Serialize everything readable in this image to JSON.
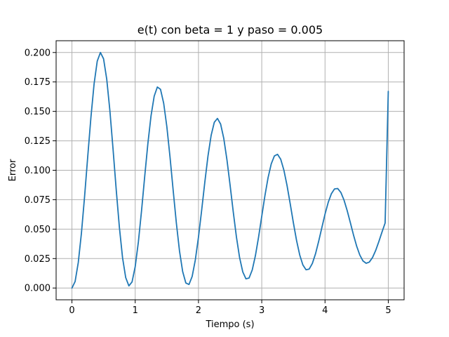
{
  "chart_data": {
    "type": "line",
    "title": "e(t) con beta = 1 y paso = 0.005",
    "xlabel": "Tiempo (s)",
    "ylabel": "Error",
    "xlim": [
      -0.25,
      5.25
    ],
    "ylim": [
      -0.01,
      0.21
    ],
    "x_ticks": [
      0,
      1,
      2,
      3,
      4,
      5
    ],
    "x_tick_labels": [
      "0",
      "1",
      "2",
      "3",
      "4",
      "5"
    ],
    "y_ticks": [
      0.0,
      0.025,
      0.05,
      0.075,
      0.1,
      0.125,
      0.15,
      0.175,
      0.2
    ],
    "y_tick_labels": [
      "0.000",
      "0.025",
      "0.050",
      "0.075",
      "0.100",
      "0.125",
      "0.150",
      "0.175",
      "0.200"
    ],
    "grid": true,
    "line_color": "#1f77b4",
    "series": [
      {
        "x": [
          0.0,
          0.05,
          0.1,
          0.15,
          0.2,
          0.25,
          0.3,
          0.35,
          0.4,
          0.45,
          0.5,
          0.55,
          0.6,
          0.65,
          0.7,
          0.75,
          0.8,
          0.85,
          0.9,
          0.95,
          1.0,
          1.05,
          1.1,
          1.15,
          1.2,
          1.25,
          1.3,
          1.35,
          1.4,
          1.45,
          1.5,
          1.55,
          1.6,
          1.65,
          1.7,
          1.75,
          1.8,
          1.85,
          1.9,
          1.95,
          2.0,
          2.05,
          2.1,
          2.15,
          2.2,
          2.25,
          2.3,
          2.35,
          2.4,
          2.45,
          2.5,
          2.55,
          2.6,
          2.65,
          2.7,
          2.75,
          2.8,
          2.85,
          2.9,
          2.95,
          3.0,
          3.05,
          3.1,
          3.15,
          3.2,
          3.25,
          3.3,
          3.35,
          3.4,
          3.45,
          3.5,
          3.55,
          3.6,
          3.65,
          3.7,
          3.75,
          3.8,
          3.85,
          3.9,
          3.95,
          4.0,
          4.05,
          4.1,
          4.15,
          4.2,
          4.25,
          4.3,
          4.35,
          4.4,
          4.45,
          4.5,
          4.55,
          4.6,
          4.65,
          4.7,
          4.75,
          4.8,
          4.85,
          4.9,
          4.95,
          5.0
        ],
        "y": [
          0.0,
          0.0055,
          0.0216,
          0.0466,
          0.0778,
          0.1118,
          0.1449,
          0.1733,
          0.1927,
          0.2,
          0.1946,
          0.1773,
          0.1505,
          0.1178,
          0.0834,
          0.0515,
          0.0257,
          0.0088,
          0.0018,
          0.0052,
          0.0182,
          0.0391,
          0.0656,
          0.0946,
          0.1225,
          0.1462,
          0.1629,
          0.1707,
          0.1687,
          0.1569,
          0.137,
          0.1113,
          0.0829,
          0.0553,
          0.0315,
          0.014,
          0.0043,
          0.003,
          0.0098,
          0.0238,
          0.0432,
          0.0659,
          0.0898,
          0.112,
          0.1296,
          0.1407,
          0.144,
          0.1392,
          0.127,
          0.1089,
          0.0872,
          0.0645,
          0.0433,
          0.0258,
          0.0137,
          0.0078,
          0.0085,
          0.0154,
          0.0275,
          0.0433,
          0.0609,
          0.0783,
          0.0937,
          0.1054,
          0.1122,
          0.1135,
          0.1093,
          0.1001,
          0.087,
          0.0715,
          0.0554,
          0.0404,
          0.0281,
          0.0196,
          0.0155,
          0.0161,
          0.0209,
          0.0291,
          0.0397,
          0.0513,
          0.0627,
          0.0726,
          0.08,
          0.0841,
          0.0845,
          0.0812,
          0.0747,
          0.0658,
          0.0556,
          0.0451,
          0.0356,
          0.028,
          0.023,
          0.021,
          0.022,
          0.0258,
          0.0318,
          0.0393,
          0.0474,
          0.0552,
          0.167
        ]
      }
    ]
  }
}
